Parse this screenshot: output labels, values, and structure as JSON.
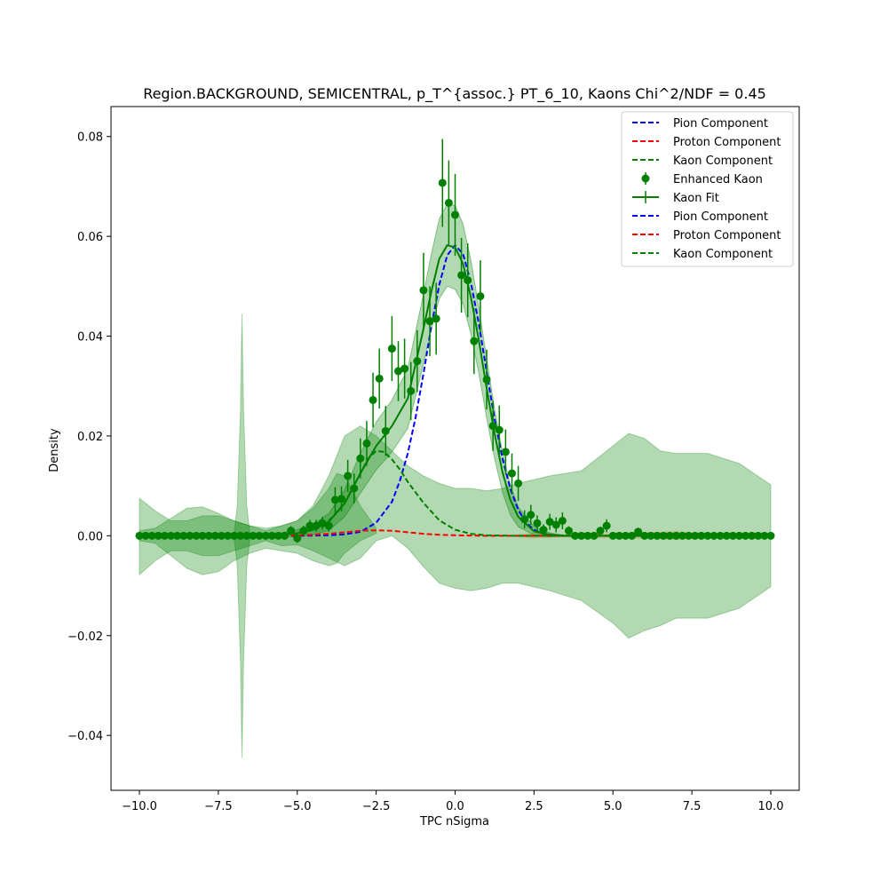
{
  "chart_data": {
    "type": "line",
    "title": "Region.BACKGROUND, SEMICENTRAL, p_T^{assoc.} PT_6_10, Kaons Chi^2/NDF = 0.45",
    "xlabel": "TPC nSigma",
    "ylabel": "Density",
    "xlim": [
      -10.9,
      10.9
    ],
    "ylim": [
      -0.051,
      0.086
    ],
    "xticks": [
      -10.0,
      -7.5,
      -5.0,
      -2.5,
      0.0,
      2.5,
      5.0,
      7.5,
      10.0
    ],
    "xtick_labels": [
      "−10.0",
      "−7.5",
      "−5.0",
      "−2.5",
      "0.0",
      "2.5",
      "5.0",
      "7.5",
      "10.0"
    ],
    "yticks": [
      -0.04,
      -0.02,
      0.0,
      0.02,
      0.04,
      0.06,
      0.08
    ],
    "ytick_labels": [
      "−0.04",
      "−0.02",
      "0.00",
      "0.02",
      "0.04",
      "0.06",
      "0.08"
    ],
    "legend_position": "top-right",
    "legend": [
      {
        "label": "Pion Component",
        "style": "dashed",
        "color": "#0000ff"
      },
      {
        "label": "Proton Component",
        "style": "dashed",
        "color": "#ff0000"
      },
      {
        "label": "Kaon Component",
        "style": "dashed",
        "color": "#008000"
      },
      {
        "label": "Enhanced Kaon",
        "style": "errorbar-marker",
        "color": "#008000"
      },
      {
        "label": "Kaon Fit",
        "style": "solid-errorbar",
        "color": "#008000"
      },
      {
        "label": "Pion Component",
        "style": "dashed",
        "color": "#0000ff"
      },
      {
        "label": "Proton Component",
        "style": "dashed",
        "color": "#ff0000"
      },
      {
        "label": "Kaon Component",
        "style": "dashed",
        "color": "#008000"
      }
    ],
    "colors": {
      "pion": "#0000ff",
      "proton": "#ff0000",
      "kaon": "#008000",
      "band": "#008000"
    },
    "data_points": {
      "x": [
        -10.0,
        -9.8,
        -9.6,
        -9.4,
        -9.2,
        -9.0,
        -8.8,
        -8.6,
        -8.4,
        -8.2,
        -8.0,
        -7.8,
        -7.6,
        -7.4,
        -7.2,
        -7.0,
        -6.8,
        -6.6,
        -6.4,
        -6.2,
        -6.0,
        -5.8,
        -5.6,
        -5.4,
        -5.2,
        -5.0,
        -4.8,
        -4.6,
        -4.4,
        -4.2,
        -4.0,
        -3.8,
        -3.6,
        -3.4,
        -3.2,
        -3.0,
        -2.8,
        -2.6,
        -2.4,
        -2.2,
        -2.0,
        -1.8,
        -1.6,
        -1.4,
        -1.2,
        -1.0,
        -0.8,
        -0.6,
        -0.4,
        -0.2,
        0.0,
        0.2,
        0.4,
        0.6,
        0.8,
        1.0,
        1.2,
        1.4,
        1.6,
        1.8,
        2.0,
        2.2,
        2.4,
        2.6,
        2.8,
        3.0,
        3.2,
        3.4,
        3.6,
        3.8,
        4.0,
        4.2,
        4.4,
        4.6,
        4.8,
        5.0,
        5.2,
        5.4,
        5.6,
        5.8,
        6.0,
        6.2,
        6.4,
        6.6,
        6.8,
        7.0,
        7.2,
        7.4,
        7.6,
        7.8,
        8.0,
        8.2,
        8.4,
        8.6,
        8.8,
        9.0,
        9.2,
        9.4,
        9.6,
        9.8,
        10.0
      ],
      "y": [
        0,
        0,
        0,
        0,
        0,
        0,
        0,
        0,
        0,
        0,
        0,
        0,
        0,
        0,
        0,
        0,
        0,
        0,
        0,
        0,
        0,
        0,
        0,
        0,
        0.001,
        -0.0005,
        0.001,
        0.002,
        0.002,
        0.0025,
        0.002,
        0.0072,
        0.0074,
        0.012,
        0.0095,
        0.0155,
        0.0185,
        0.0272,
        0.0315,
        0.021,
        0.0375,
        0.033,
        0.0335,
        0.029,
        0.035,
        0.0492,
        0.043,
        0.0435,
        0.0707,
        0.0667,
        0.0643,
        0.0522,
        0.0512,
        0.039,
        0.048,
        0.0313,
        0.022,
        0.0212,
        0.0168,
        0.0125,
        0.0105,
        0.0033,
        0.0042,
        0.0025,
        0.0012,
        0.0028,
        0.0022,
        0.003,
        0.001,
        0,
        0,
        0,
        0,
        0.001,
        0.002,
        0,
        0,
        0,
        0,
        0.0008,
        0,
        0,
        0,
        0,
        0,
        0,
        0,
        0,
        0,
        0,
        0,
        0,
        0,
        0,
        0,
        0,
        0,
        0,
        0,
        0,
        0
      ],
      "yerr": [
        0,
        0,
        0,
        0,
        0,
        0,
        0,
        0,
        0,
        0,
        0,
        0,
        0,
        0,
        0,
        0,
        0,
        0,
        0,
        0,
        0,
        0,
        0,
        0,
        0.0009,
        0.0009,
        0.001,
        0.0012,
        0.0012,
        0.0013,
        0.0012,
        0.0025,
        0.0025,
        0.0032,
        0.003,
        0.004,
        0.0045,
        0.0055,
        0.006,
        0.005,
        0.0065,
        0.006,
        0.006,
        0.0058,
        0.0062,
        0.0075,
        0.007,
        0.0072,
        0.0088,
        0.0085,
        0.0082,
        0.0075,
        0.0074,
        0.0066,
        0.0072,
        0.006,
        0.005,
        0.0049,
        0.0045,
        0.004,
        0.0035,
        0.0018,
        0.002,
        0.0016,
        0.0011,
        0.0016,
        0.0015,
        0.0017,
        0.0009,
        0,
        0,
        0,
        0,
        0.0008,
        0.0013,
        0,
        0,
        0,
        0,
        0.0008,
        0,
        0,
        0,
        0,
        0,
        0,
        0,
        0,
        0,
        0,
        0,
        0,
        0,
        0,
        0,
        0,
        0,
        0,
        0,
        0,
        0
      ]
    },
    "kaon_fit": {
      "x": [
        -10,
        -9,
        -8,
        -7,
        -6,
        -5,
        -4.5,
        -4,
        -3.5,
        -3,
        -2.5,
        -2,
        -1.5,
        -1.25,
        -1,
        -0.75,
        -0.5,
        -0.25,
        0,
        0.25,
        0.5,
        0.75,
        1,
        1.25,
        1.5,
        1.75,
        2,
        2.5,
        3,
        3.5,
        4,
        5,
        6,
        7,
        8,
        9,
        10
      ],
      "y": [
        0,
        0,
        0,
        0,
        0,
        0.0005,
        0.0012,
        0.0028,
        0.0065,
        0.0125,
        0.018,
        0.022,
        0.0275,
        0.0345,
        0.0415,
        0.049,
        0.0555,
        0.0582,
        0.0578,
        0.0545,
        0.0478,
        0.0392,
        0.0295,
        0.0205,
        0.0128,
        0.0072,
        0.0038,
        0.0009,
        0.0002,
        0,
        0,
        0,
        0,
        0,
        0,
        0,
        0
      ]
    },
    "fit_band": {
      "x": [
        -10,
        -9,
        -8,
        -7,
        -6,
        -5,
        -4.5,
        -4,
        -3.5,
        -3,
        -2.5,
        -2,
        -1.5,
        -1.25,
        -1,
        -0.75,
        -0.5,
        -0.25,
        0,
        0.25,
        0.5,
        0.75,
        1,
        1.25,
        1.5,
        1.75,
        2,
        2.5,
        3,
        3.5,
        4,
        5,
        6,
        7,
        8,
        9,
        10
      ],
      "upper": [
        0,
        0,
        0,
        0,
        0,
        0.0012,
        0.0022,
        0.0045,
        0.0092,
        0.0165,
        0.0228,
        0.0272,
        0.0335,
        0.041,
        0.0485,
        0.0565,
        0.0635,
        0.0665,
        0.0662,
        0.0625,
        0.0552,
        0.0458,
        0.0355,
        0.0255,
        0.0168,
        0.0102,
        0.0058,
        0.0018,
        0.0006,
        0,
        0,
        0,
        0,
        0,
        0,
        0,
        0
      ],
      "lower": [
        0,
        0,
        0,
        0,
        0,
        -0.0002,
        0.0002,
        0.0011,
        0.0038,
        0.0085,
        0.0132,
        0.0168,
        0.0215,
        0.028,
        0.0345,
        0.0415,
        0.0475,
        0.05,
        0.0494,
        0.0465,
        0.0404,
        0.0326,
        0.0235,
        0.0155,
        0.0088,
        0.0042,
        0.0018,
        0.0001,
        -0.0002,
        0,
        0,
        0,
        0,
        0,
        0,
        0,
        0
      ]
    },
    "components": [
      {
        "name": "Pion Component",
        "color": "#0000ff",
        "x": [
          -10,
          -5,
          -4,
          -3.5,
          -3,
          -2.5,
          -2,
          -1.75,
          -1.5,
          -1.25,
          -1,
          -0.75,
          -0.5,
          -0.25,
          0,
          0.25,
          0.5,
          0.75,
          1,
          1.25,
          1.5,
          1.75,
          2,
          2.25,
          2.5,
          2.75,
          3,
          3.5,
          4,
          6,
          8,
          10
        ],
        "y": [
          0,
          0,
          0.0001,
          0.0003,
          0.0008,
          0.0026,
          0.0068,
          0.011,
          0.0165,
          0.0238,
          0.0325,
          0.042,
          0.0503,
          0.0562,
          0.0582,
          0.0565,
          0.0507,
          0.0425,
          0.0328,
          0.0235,
          0.0155,
          0.0094,
          0.0052,
          0.0026,
          0.0012,
          0.0005,
          0.0002,
          0,
          0,
          0,
          0,
          0
        ]
      },
      {
        "name": "Proton Component",
        "color": "#ff0000",
        "x": [
          -10,
          -6,
          -5,
          -4.5,
          -4,
          -3.5,
          -3,
          -2.5,
          -2,
          -1.5,
          -1,
          -0.5,
          0,
          1,
          2,
          3,
          5,
          10
        ],
        "y": [
          0,
          0,
          0.0001,
          0.0002,
          0.0004,
          0.0007,
          0.001,
          0.0011,
          0.001,
          0.0007,
          0.0004,
          0.0002,
          0.0001,
          0,
          0,
          0,
          0,
          0
        ]
      },
      {
        "name": "Kaon Component",
        "color": "#008000",
        "x": [
          -10,
          -6,
          -5,
          -4.5,
          -4,
          -3.5,
          -3,
          -2.75,
          -2.5,
          -2.25,
          -2,
          -1.75,
          -1.5,
          -1,
          -0.5,
          0,
          0.5,
          1,
          2,
          3,
          5,
          10
        ],
        "y": [
          0,
          0,
          0.0005,
          0.0013,
          0.003,
          0.0065,
          0.0125,
          0.0155,
          0.017,
          0.0168,
          0.0153,
          0.0133,
          0.0108,
          0.0066,
          0.0031,
          0.0012,
          0.0004,
          0.0001,
          0,
          0,
          0,
          0
        ]
      }
    ],
    "uncertainty_bands": [
      {
        "x": [
          -10,
          -9.5,
          -9,
          -8.5,
          -8,
          -7.5,
          -7,
          -6.5,
          -6,
          -5.5,
          -5,
          -4.5,
          -4,
          -3.5,
          -3,
          -2.5,
          -2,
          -1.5,
          -1,
          -0.5,
          0,
          0.5,
          1,
          1.5,
          2,
          3,
          4,
          5,
          5.5,
          6,
          6.5,
          7,
          8,
          9,
          10
        ],
        "upper": [
          0.0075,
          0.005,
          0.003,
          0.003,
          0.004,
          0.004,
          0.003,
          0.002,
          0.001,
          0.002,
          0.003,
          0.006,
          0.012,
          0.02,
          0.022,
          0.02,
          0.017,
          0.014,
          0.012,
          0.0105,
          0.0095,
          0.0095,
          0.009,
          0.0095,
          0.0105,
          0.012,
          0.013,
          0.018,
          0.0205,
          0.0195,
          0.017,
          0.0165,
          0.0165,
          0.0145,
          0.0102
        ],
        "lower": [
          -0.0078,
          -0.005,
          -0.003,
          -0.003,
          -0.004,
          -0.004,
          -0.003,
          -0.002,
          -0.001,
          -0.002,
          -0.0018,
          -0.003,
          -0.0045,
          -0.006,
          -0.0045,
          -0.001,
          0,
          -0.0025,
          -0.0062,
          -0.0095,
          -0.0105,
          -0.011,
          -0.0105,
          -0.0095,
          -0.0095,
          -0.011,
          -0.013,
          -0.0175,
          -0.0205,
          -0.019,
          -0.018,
          -0.0165,
          -0.0165,
          -0.0145,
          -0.0102
        ]
      },
      {
        "x": [
          -10,
          -9.5,
          -9,
          -8.5,
          -8,
          -7.5,
          -7,
          -6.5,
          -6,
          -5.5,
          -5,
          -4.5,
          -4,
          -3.75,
          -3.5,
          -3,
          -2.5
        ],
        "upper": [
          0.001,
          0.0015,
          0.0035,
          0.0055,
          0.0058,
          0.0045,
          0.003,
          0.002,
          0.0015,
          0.002,
          0.003,
          0.0055,
          0.0095,
          0.0125,
          0.012,
          0.006,
          0.0015
        ],
        "lower": [
          -0.001,
          -0.0015,
          -0.004,
          -0.0065,
          -0.0078,
          -0.0072,
          -0.005,
          -0.0035,
          -0.0025,
          -0.003,
          -0.0035,
          -0.005,
          -0.006,
          -0.0055,
          -0.0035,
          -0.001,
          0.0005
        ]
      },
      {
        "x": [
          -7,
          -6.9,
          -6.8,
          -6.75,
          -6.7,
          -6.6,
          -6.5
        ],
        "upper": [
          0.0005,
          0.006,
          0.025,
          0.0445,
          0.025,
          0.006,
          0.0005
        ],
        "lower": [
          -0.0005,
          -0.006,
          -0.025,
          -0.0445,
          -0.025,
          -0.006,
          -0.0005
        ]
      }
    ],
    "orange_band": {
      "x": [
        2,
        2.5,
        3,
        3.5,
        4,
        5,
        6,
        7,
        8,
        8.5
      ],
      "upper": [
        0.0003,
        0.0006,
        0.0005,
        0.0003,
        0.0006,
        0.0004,
        0.0007,
        0.0009,
        0.0005,
        0.0002
      ],
      "lower": [
        -0.0003,
        -0.0005,
        -0.0004,
        -0.0003,
        -0.0005,
        -0.0004,
        -0.0006,
        -0.0008,
        -0.0004,
        -0.0002
      ]
    }
  }
}
